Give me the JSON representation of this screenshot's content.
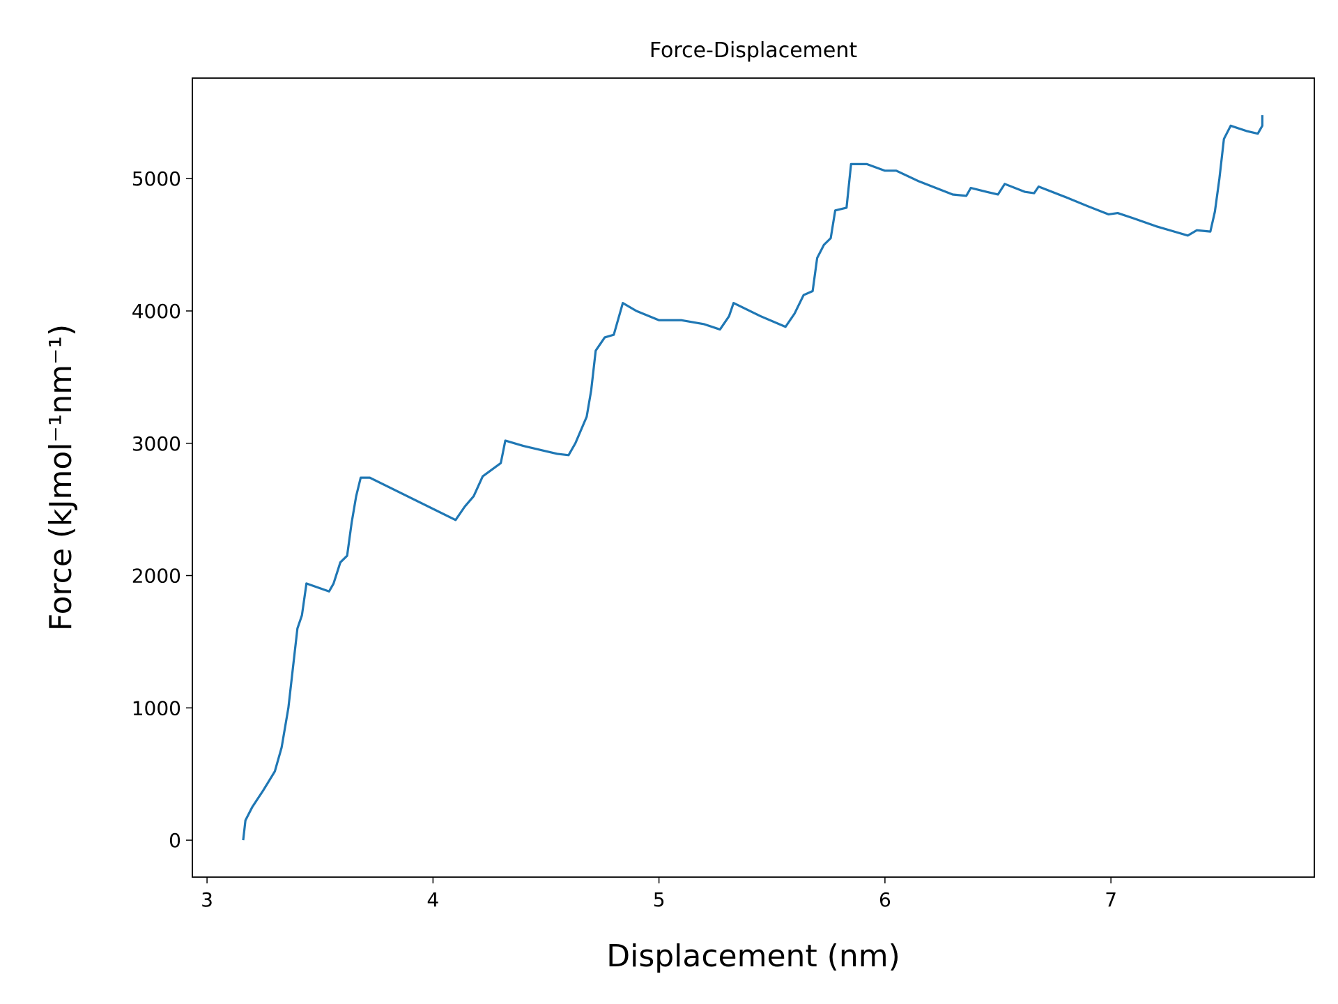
{
  "chart_data": {
    "type": "line",
    "title": "Force-Displacement",
    "x_label": "Displacement (nm)",
    "y_label": "Force (kJmol⁻¹nm⁻¹)",
    "x": [
      3.16,
      3.17,
      3.2,
      3.25,
      3.3,
      3.33,
      3.36,
      3.38,
      3.4,
      3.42,
      3.44,
      3.54,
      3.56,
      3.59,
      3.62,
      3.64,
      3.66,
      3.68,
      3.72,
      4.1,
      4.14,
      4.18,
      4.22,
      4.26,
      4.3,
      4.32,
      4.4,
      4.5,
      4.55,
      4.6,
      4.63,
      4.68,
      4.7,
      4.72,
      4.76,
      4.8,
      4.84,
      4.9,
      5.0,
      5.1,
      5.2,
      5.27,
      5.31,
      5.33,
      5.45,
      5.56,
      5.6,
      5.64,
      5.68,
      5.7,
      5.73,
      5.76,
      5.78,
      5.83,
      5.85,
      5.92,
      6.0,
      6.05,
      6.15,
      6.3,
      6.36,
      6.38,
      6.45,
      6.5,
      6.53,
      6.62,
      6.66,
      6.68,
      6.8,
      6.9,
      6.99,
      7.03,
      7.1,
      7.2,
      7.28,
      7.34,
      7.38,
      7.44,
      7.46,
      7.48,
      7.5,
      7.53,
      7.6,
      7.65,
      7.67,
      7.67
    ],
    "series": [
      {
        "color": "#1f77b4",
        "values": [
          0,
          150,
          250,
          380,
          520,
          700,
          1000,
          1300,
          1600,
          1700,
          1940,
          1880,
          1940,
          2100,
          2150,
          2400,
          2600,
          2740,
          2740,
          2420,
          2520,
          2600,
          2750,
          2800,
          2850,
          3020,
          2980,
          2940,
          2920,
          2910,
          3000,
          3200,
          3400,
          3700,
          3800,
          3820,
          4060,
          4000,
          3930,
          3930,
          3900,
          3860,
          3960,
          4060,
          3960,
          3880,
          3980,
          4120,
          4150,
          4400,
          4500,
          4550,
          4760,
          4780,
          5110,
          5110,
          5060,
          5060,
          4980,
          4880,
          4870,
          4930,
          4900,
          4880,
          4960,
          4900,
          4890,
          4940,
          4860,
          4790,
          4730,
          4740,
          4700,
          4640,
          4600,
          4570,
          4610,
          4600,
          4750,
          5000,
          5300,
          5400,
          5360,
          5340,
          5400,
          5480
        ]
      }
    ],
    "xlim": [
      2.935,
      7.9
    ],
    "ylim": [
      -279,
      5760
    ],
    "xticks": [
      3,
      4,
      5,
      6,
      7
    ],
    "yticks": [
      0,
      1000,
      2000,
      3000,
      4000,
      5000
    ]
  }
}
